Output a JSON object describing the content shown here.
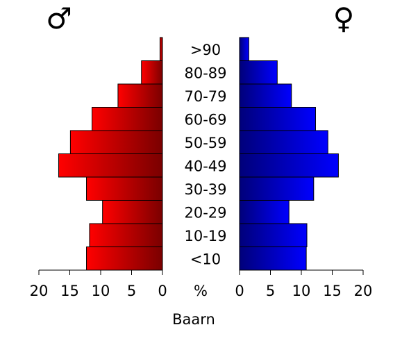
{
  "chart_data": {
    "type": "bar",
    "subtype": "population-pyramid",
    "categories": [
      "<10",
      "10-19",
      "20-29",
      "30-39",
      "40-49",
      "50-59",
      "60-69",
      "70-79",
      "80-89",
      ">90"
    ],
    "series": [
      {
        "symbol": "♂",
        "color": "#ff0000",
        "values": [
          12.3,
          11.8,
          9.7,
          12.3,
          16.8,
          14.9,
          11.4,
          7.2,
          3.4,
          0.4
        ]
      },
      {
        "symbol": "♀",
        "color": "#0000ff",
        "values": [
          10.8,
          10.9,
          8.0,
          12.0,
          16.0,
          14.3,
          12.3,
          8.4,
          6.1,
          1.5
        ]
      }
    ],
    "xlim": [
      0,
      20
    ],
    "xticks": [
      "20",
      "15",
      "10",
      "5",
      "0"
    ],
    "xticks_right": [
      "0",
      "5",
      "10",
      "15",
      "20"
    ],
    "center_unit": "%",
    "xlabel": "Baarn",
    "grid": false
  }
}
